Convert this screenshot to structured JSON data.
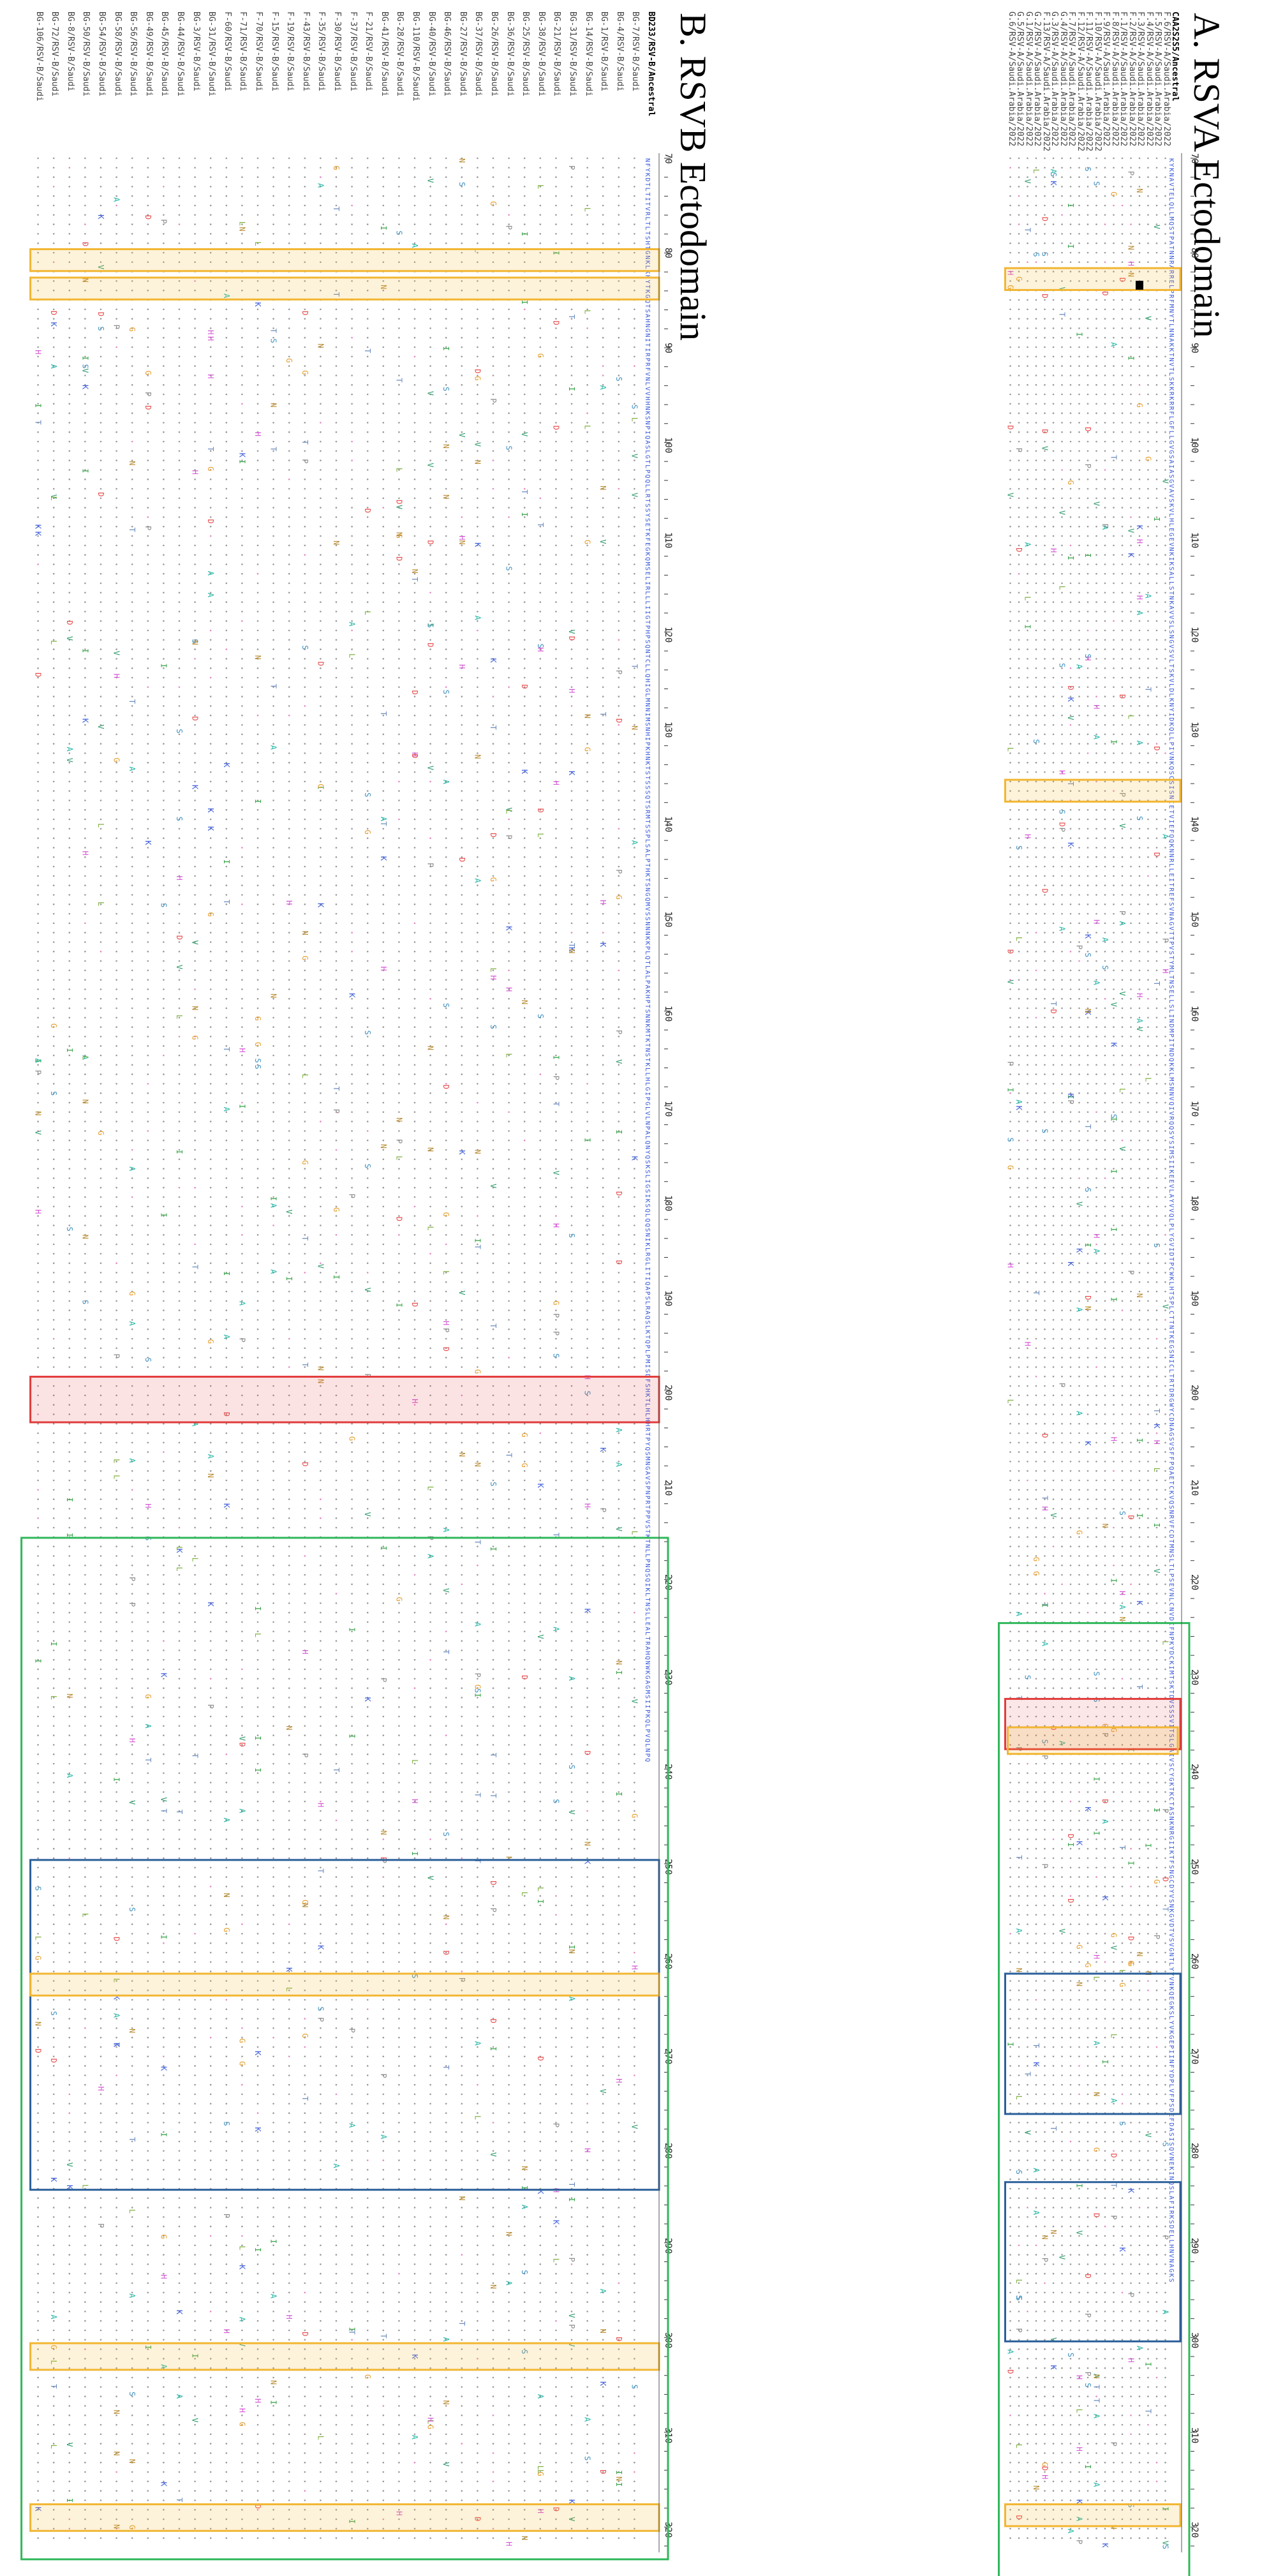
{
  "panels": [
    {
      "id": "A",
      "title": "A. RSVA Ectodomain",
      "sequences": [
        "CAA2S2S5/Ancestral",
        "F.6/RSV-A/Saudi.Arabia/2022",
        "F.5/RSV-A/Saudi.Arabia/2022",
        "F.4/RSV-A/Saudi.Arabia/2022",
        "F.3/RSV-A/Saudi.Arabia/2022",
        "F.2/RSV-A/Saudi.Arabia/2022",
        "F.1/RSV-A/Saudi.Arabia/2022",
        "F.8/RSV-A/Saudi.Arabia/2022",
        "F.9/RSV-A/Saudi.Arabia/2022",
        "F.10/RSV-A/Saudi.Arabia/2022",
        "F.11/RSV-A/Saudi.Arabia/2022",
        "F.12/RSV-A/Saudi.Arabia/2022",
        "F.7/RSV-A/Saudi.Arabia/2022",
        "G.4/RSV-A/Saudi.Arabia/2022",
        "G.3/RSV-A/Saudi.Arabia/2022",
        "F.13/RSV-A/Saudi.Arabia/2022",
        "G.2/RSV-A/Saudi.Arabia/2022",
        "G.1/RSV-A/Saudi.Arabia/2022",
        "G.5/RSV-A/Saudi.Arabia/2022",
        "G.6/RSV-A/Saudi.Arabia/2022"
      ],
      "positions": [
        "70",
        "80",
        "90",
        "100",
        "110",
        "120",
        "130",
        "140",
        "150",
        "160",
        "170",
        "180",
        "190",
        "200",
        "210",
        "220",
        "230",
        "240",
        "250",
        "260",
        "270",
        "280",
        "290",
        "300",
        "310",
        "320"
      ],
      "reference_residues": "KYKNAVTELQLLMQSTPATNNRARRELPRFMNYTLNNAKKTNVTLSKKRKRRFLGFLLGVGSAIASGVAVSKVLHLEGEVNKIKSALLSTNKAVVSLSNGVSVLTSKVLDLKNYIDKQLLPIVNKQSCSISNIETVIEFQQKNNRLLEITREFSVNAGVTTPVSTYMLTNSELLSLINDMPITNDQKKLMSNNVQIVRQQSYSIMSIIKEEVLAYVVQLPLYGVIDTPCWKLHTSPLCTTNTKEGSNICLTRTDRGWYCDNAGSVSFFPQAETCKVQSNRVFCDTMNSLTLPSEVNLCNVDIFNPKYDCKIMTSKTDVSSSVITSLGAIVSCYGKTKCTASNKNRGIIKTFSNGCDYVSNKGVDTVSVGNTLYYVNKQEGKSLYVKGEPIINFYDPLVFPSDEFDASISQVNEKINQSLAFIRKSDELLHNVNAGKS",
      "highlights": [
        {
          "type": "yellow",
          "from": "82",
          "to": "82"
        },
        {
          "type": "yellow",
          "from": "136",
          "to": "136"
        },
        {
          "type": "red",
          "from": "233",
          "to": "237"
        },
        {
          "type": "yellow",
          "from": "236",
          "to": "237"
        },
        {
          "type": "green",
          "from": "225",
          "to": "325"
        },
        {
          "type": "blue",
          "from": "262",
          "to": "276"
        },
        {
          "type": "blue",
          "from": "284",
          "to": "300"
        },
        {
          "type": "yellow",
          "from": "318",
          "to": "319"
        }
      ]
    },
    {
      "id": "B",
      "title": "B. RSVB Ectodomain",
      "sequences": [
        "BD233/RSV-B/Ancestral",
        "BG-7/RSV-B/Saudi",
        "BG-4/RSV-B/Saudi",
        "BG-1/RSV-B/Saudi",
        "BG-14/RSV-B/Saudi",
        "BG-31/RSV-B/Saudi",
        "BG-21/RSV-B/Saudi",
        "BG-38/RSV-B/Saudi",
        "BG-25/RSV-B/Saudi",
        "BG-36/RSV-B/Saudi",
        "BG-26/RSV-B/Saudi",
        "BG-37/RSV-B/Saudi",
        "BG-27/RSV-B/Saudi",
        "BG-46/RSV-B/Saudi",
        "BG-40/RSV-B/Saudi",
        "BG-110/RSV-B/Saudi",
        "BG-28/RSV-B/Saudi",
        "BG-41/RSV-B/Saudi",
        "F-21/RSV-B/Saudi",
        "F-37/RSV-B/Saudi",
        "F-30/RSV-B/Saudi",
        "F-35/RSV-B/Saudi",
        "F-43/RSV-B/Saudi",
        "F-19/RSV-B/Saudi",
        "F-15/RSV-B/Saudi",
        "F-70/RSV-B/Saudi",
        "F-71/RSV-B/Saudi",
        "F-60/RSV-B/Saudi",
        "BG-31/RSV-B/Saudi",
        "BG-3/RSV-B/Saudi",
        "BG-44/RSV-B/Saudi",
        "BG-45/RSV-B/Saudi",
        "BG-49/RSV-B/Saudi",
        "BG-56/RSV-B/Saudi",
        "BG-58/RSV-B/Saudi",
        "BG-54/RSV-B/Saudi",
        "BG-50/RSV-B/Saudi",
        "BG-8/RSV-B/Saudi",
        "BG-72/RSV-B/Saudi",
        "BG-106/RSV-B/Saudi"
      ],
      "positions": [
        "70",
        "80",
        "90",
        "100",
        "110",
        "120",
        "130",
        "140",
        "150",
        "160",
        "170",
        "180",
        "190",
        "200",
        "210",
        "220",
        "230",
        "240",
        "250",
        "260",
        "270",
        "280",
        "290",
        "300",
        "310",
        "320"
      ],
      "reference_residues": "NFYKDTLTITVRLTLTSHTGNKLKHYTKGQTSAHNGNITIRPRFVNLVVHHNKSNPIQASLGTLPQQLLRTSSYSETKFEGKQMSELIRLLLIIGTPHPSQNTCLLQHIGLMNNIMSNHIPKHNKTSTSSSQTSRMTSSPLSALPTHKTSNGQMVSSNNNKKPLQTLALPAKHPTSNNKMTKTNSTKLLHLGIPGLVLNPALQNYQSKSLIGSIKSQLQQSNIKLRGLITIQAPSLRAQSLKTQPLPMISDFSHKTLHLHHRTPYQSMNGAVSPNPRTPPVSTKTNLLPNQSQIKLTNSLLEALTRAHQNWKGAGMSIIPKQLPVQLNPQ"
    }
  ],
  "colors": {
    "dots": "#9a9a9a",
    "dot_pink": "#e28ac0",
    "residue_A": "#21b5a4",
    "residue_I": "#36a346",
    "residue_L": "#7fb241",
    "residue_S": "#3d8fbf",
    "residue_T": "#6a8bbf",
    "residue_N": "#b88a2f",
    "residue_D": "#e84c4c",
    "residue_E": "#e06060",
    "residue_K": "#3b5bd9",
    "residue_R": "#4a5ed0",
    "residue_H": "#d454d4",
    "residue_G": "#e69c2a",
    "residue_P": "#8a8a8a",
    "residue_V": "#2c9a6a",
    "box_yellow": "#f2b632",
    "box_red": "#e23b3b",
    "box_green": "#2fb85a",
    "box_blue": "#2a5f9a"
  }
}
